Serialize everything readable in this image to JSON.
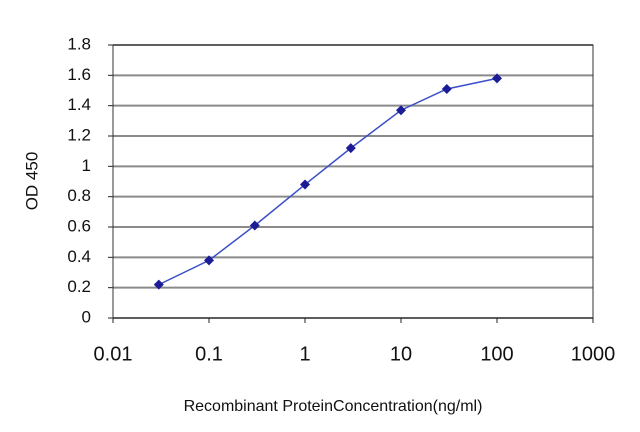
{
  "chart_data": {
    "type": "line",
    "x_label": "Recombinant ProteinConcentration(ng/ml)",
    "y_label": "OD 450",
    "x": [
      0.03,
      0.1,
      0.3,
      1,
      3,
      10,
      30,
      100
    ],
    "series": [
      {
        "color": "#3a4fc8",
        "marker_color": "#1c1c96",
        "values": [
          0.22,
          0.38,
          0.61,
          0.88,
          1.12,
          1.37,
          1.51,
          1.58
        ]
      }
    ],
    "xscale": "log",
    "xlim": [
      0.01,
      1000
    ],
    "xticks": [
      0.01,
      0.1,
      1,
      10,
      100,
      1000
    ],
    "ylim": [
      0,
      1.8
    ],
    "yticks": [
      0,
      0.2,
      0.4,
      0.6,
      0.8,
      1,
      1.2,
      1.4,
      1.6,
      1.8
    ],
    "grid": true
  }
}
